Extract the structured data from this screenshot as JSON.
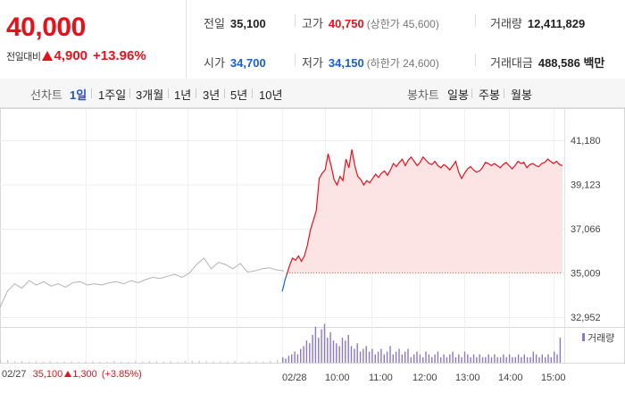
{
  "quote": {
    "price": "40,000",
    "change_label": "전일대비",
    "change_amount": "4,900",
    "change_percent": "+13.96%",
    "prev_close_label": "전일",
    "prev_close": "35,100",
    "open_label": "시가",
    "open": "34,700",
    "high_label": "고가",
    "high": "40,750",
    "upper_limit": "(상한가 45,600)",
    "low_label": "저가",
    "low": "34,150",
    "lower_limit": "(하한가 24,600)",
    "volume_label": "거래량",
    "volume": "12,411,829",
    "value_label": "거래대금",
    "value": "488,586 백만"
  },
  "tabs": {
    "line_chart": "선차트",
    "line_periods": [
      "1일",
      "1주일",
      "3개월",
      "1년",
      "3년",
      "5년",
      "10년"
    ],
    "active_period": "1일",
    "candle_chart": "봉차트",
    "candle_periods": [
      "일봉",
      "주봉",
      "월봉"
    ]
  },
  "colors": {
    "up": "#e4121c",
    "down": "#1a5fd0",
    "area": "#fde4e4",
    "volume": "#8b78c8",
    "prev_line": "#b3b3b3"
  },
  "chart_data": {
    "type": "line",
    "y_ticks": [
      "41,180",
      "39,123",
      "37,066",
      "35,009",
      "32,952"
    ],
    "ylim": [
      32952,
      41180
    ],
    "baseline": 35009,
    "volume_legend": "거래량",
    "x_labels": [
      "02/27",
      "02/28",
      "10:00",
      "11:00",
      "12:00",
      "13:00",
      "14:00",
      "15:00"
    ],
    "prev_day": {
      "date": "02/27",
      "close": "35,100",
      "change": "1,300",
      "change_percent": "(+3.85%)",
      "values": [
        33400,
        34150,
        34500,
        34300,
        34650,
        34450,
        34600,
        34400,
        34500,
        34350,
        34550,
        34600,
        34450,
        34500,
        34450,
        34550,
        34600,
        34500,
        34650,
        34550,
        34700,
        34800,
        34750,
        34850,
        34950,
        34800,
        35000,
        35400,
        35700,
        35200,
        35500,
        35400,
        35200,
        35450,
        35050,
        35100,
        35200,
        35250,
        35150,
        35100
      ]
    },
    "today": {
      "date": "02/28",
      "pre_values": [
        34150,
        34400,
        34700,
        34900
      ],
      "values": [
        34900,
        35350,
        35700,
        35600,
        35800,
        35550,
        35800,
        36300,
        37000,
        37450,
        37900,
        39400,
        39650,
        39800,
        40550,
        40000,
        39350,
        39100,
        39500,
        39300,
        40300,
        39900,
        40750,
        40000,
        39500,
        39350,
        39100,
        39300,
        39200,
        39400,
        39600,
        39450,
        39650,
        39750,
        39550,
        39800,
        40100,
        39950,
        40150,
        40300,
        40000,
        40250,
        40400,
        40200,
        40000,
        40150,
        40400,
        40250,
        40100,
        40050,
        40200,
        40000,
        39900,
        40050,
        39950,
        39800,
        40000,
        40200,
        39700,
        39400,
        39650,
        39850,
        39950,
        39800,
        39700,
        39750,
        39900,
        40150,
        40100,
        40000,
        40100,
        40000,
        39900,
        40050,
        40150,
        40000,
        39850,
        40000,
        40200,
        40100,
        40150,
        39900,
        40050,
        40100,
        40000,
        39950,
        40100,
        40150,
        40300,
        40200,
        40100,
        40200,
        40050,
        40000
      ]
    },
    "volume": {
      "prev_day": [
        1,
        1,
        0.5,
        0.6,
        0.4,
        0.5,
        0.4,
        0.6,
        0.3,
        0.4,
        0.5,
        0.3,
        0.4,
        0.5,
        0.3,
        0.4,
        0.6,
        0.4,
        0.3,
        0.5,
        0.4,
        0.6,
        0.5,
        0.4,
        0.5,
        0.3,
        0.6,
        0.7,
        0.6,
        0.5,
        0.4,
        0.5,
        0.4,
        0.6,
        0.3,
        0.4,
        0.5,
        0.4,
        0.6,
        1
      ],
      "today": [
        2,
        1.5,
        2.5,
        3,
        4,
        3,
        5,
        6,
        8,
        7,
        10,
        13,
        9,
        12,
        14,
        9,
        11,
        8,
        7,
        6,
        9,
        8,
        10,
        6,
        5,
        7,
        4,
        5,
        6,
        4,
        5,
        3,
        4,
        5,
        3,
        4,
        6,
        3,
        4,
        5,
        3,
        4,
        5,
        2,
        3,
        4,
        3,
        2,
        4,
        3,
        2,
        3,
        4,
        2,
        3,
        2,
        3,
        4,
        2,
        3,
        2,
        4,
        3,
        2,
        3,
        2,
        3,
        2,
        2,
        3,
        2,
        3,
        2,
        2,
        3,
        2,
        3,
        2,
        2,
        3,
        2,
        3,
        2,
        2,
        4,
        3,
        2,
        3,
        2,
        3,
        2,
        4,
        3,
        9
      ]
    }
  }
}
